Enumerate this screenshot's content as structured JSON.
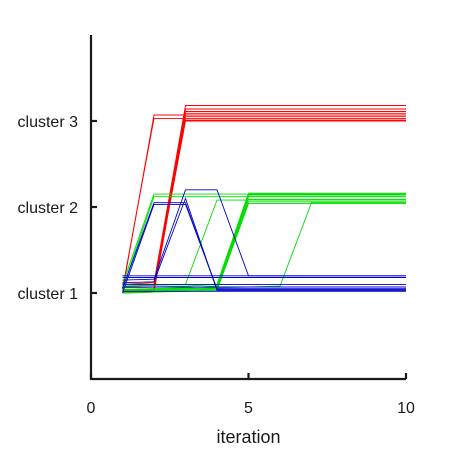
{
  "chart_data": {
    "type": "line",
    "title": "",
    "xlabel": "iteration",
    "ylabel": "",
    "xlim": [
      0,
      10
    ],
    "ylim": [
      0,
      4
    ],
    "x": [
      1,
      2,
      3,
      4,
      5,
      6,
      7,
      8,
      9,
      10
    ],
    "x_ticks": [
      0,
      5,
      10
    ],
    "x_tick_labels": [
      "0",
      "5",
      "10"
    ],
    "y_ticks": [
      1,
      2,
      3
    ],
    "y_tick_labels": [
      "cluster 1",
      "cluster 2",
      "cluster 3"
    ],
    "grid": false,
    "legend": "none",
    "colors": {
      "red": "#ff0000",
      "green": "#00dd00",
      "blue": "#0000cc"
    },
    "series": [
      {
        "color": "red",
        "values": [
          1.02,
          3.07,
          3.07,
          3.07,
          3.07,
          3.07,
          3.07,
          3.07,
          3.07,
          3.07
        ]
      },
      {
        "color": "red",
        "values": [
          1.05,
          3.03,
          3.03,
          3.03,
          3.03,
          3.03,
          3.03,
          3.03,
          3.03,
          3.03
        ]
      },
      {
        "color": "red",
        "values": [
          1.1,
          1.12,
          3.18,
          3.18,
          3.18,
          3.18,
          3.18,
          3.18,
          3.18,
          3.18
        ]
      },
      {
        "color": "red",
        "values": [
          1.04,
          1.05,
          3.14,
          3.14,
          3.14,
          3.14,
          3.14,
          3.14,
          3.14,
          3.14
        ]
      },
      {
        "color": "red",
        "values": [
          1.08,
          1.09,
          3.11,
          3.11,
          3.11,
          3.11,
          3.11,
          3.11,
          3.11,
          3.11
        ]
      },
      {
        "color": "red",
        "values": [
          1.02,
          1.03,
          3.09,
          3.09,
          3.09,
          3.09,
          3.09,
          3.09,
          3.09,
          3.09
        ]
      },
      {
        "color": "red",
        "values": [
          1.0,
          1.01,
          3.05,
          3.05,
          3.05,
          3.05,
          3.05,
          3.05,
          3.05,
          3.05
        ]
      },
      {
        "color": "red",
        "values": [
          1.03,
          1.04,
          3.01,
          3.01,
          3.01,
          3.01,
          3.01,
          3.01,
          3.01,
          3.01
        ]
      },
      {
        "color": "red",
        "values": [
          1.06,
          1.07,
          3.0,
          3.0,
          3.0,
          3.0,
          3.0,
          3.0,
          3.0,
          3.0
        ]
      },
      {
        "color": "green",
        "values": [
          1.1,
          2.15,
          2.15,
          2.15,
          2.15,
          2.15,
          2.15,
          2.15,
          2.15,
          2.15
        ]
      },
      {
        "color": "green",
        "values": [
          1.05,
          2.12,
          2.12,
          2.12,
          2.12,
          2.12,
          2.12,
          2.12,
          2.12,
          2.12
        ]
      },
      {
        "color": "green",
        "values": [
          1.08,
          1.09,
          1.1,
          2.08,
          2.08,
          2.08,
          2.08,
          2.08,
          2.08,
          2.08
        ]
      },
      {
        "color": "green",
        "values": [
          1.06,
          1.07,
          1.08,
          1.1,
          2.16,
          2.16,
          2.16,
          2.16,
          2.16,
          2.16
        ]
      },
      {
        "color": "green",
        "values": [
          1.04,
          1.05,
          1.06,
          1.08,
          2.14,
          2.14,
          2.14,
          2.14,
          2.14,
          2.14
        ]
      },
      {
        "color": "green",
        "values": [
          1.03,
          1.04,
          1.05,
          1.06,
          2.12,
          2.12,
          2.12,
          2.12,
          2.12,
          2.12
        ]
      },
      {
        "color": "green",
        "values": [
          1.02,
          1.03,
          1.04,
          1.05,
          2.09,
          2.09,
          2.09,
          2.09,
          2.09,
          2.09
        ]
      },
      {
        "color": "green",
        "values": [
          1.01,
          1.02,
          1.03,
          1.04,
          2.06,
          2.06,
          2.06,
          2.06,
          2.06,
          2.06
        ]
      },
      {
        "color": "green",
        "values": [
          1.0,
          1.01,
          1.02,
          1.03,
          2.04,
          2.04,
          2.04,
          2.04,
          2.04,
          2.04
        ]
      },
      {
        "color": "green",
        "values": [
          1.03,
          1.04,
          1.05,
          1.06,
          1.07,
          1.08,
          2.05,
          2.05,
          2.05,
          2.05
        ]
      },
      {
        "color": "blue",
        "values": [
          1.2,
          1.2,
          1.2,
          1.2,
          1.2,
          1.2,
          1.2,
          1.2,
          1.2,
          1.2
        ]
      },
      {
        "color": "blue",
        "values": [
          1.18,
          1.18,
          1.18,
          1.18,
          1.18,
          1.18,
          1.18,
          1.18,
          1.18,
          1.18
        ]
      },
      {
        "color": "blue",
        "values": [
          1.15,
          1.16,
          2.2,
          2.2,
          1.2,
          1.2,
          1.2,
          1.2,
          1.2,
          1.2
        ]
      },
      {
        "color": "blue",
        "values": [
          1.12,
          1.13,
          2.1,
          1.03,
          1.03,
          1.03,
          1.03,
          1.03,
          1.03,
          1.03
        ]
      },
      {
        "color": "blue",
        "values": [
          1.0,
          2.03,
          2.03,
          1.05,
          1.05,
          1.05,
          1.05,
          1.05,
          1.05,
          1.05
        ]
      },
      {
        "color": "blue",
        "values": [
          1.05,
          2.05,
          2.05,
          1.04,
          1.04,
          1.04,
          1.04,
          1.04,
          1.04,
          1.04
        ]
      },
      {
        "color": "blue",
        "values": [
          1.1,
          1.1,
          1.1,
          1.1,
          1.1,
          1.1,
          1.1,
          1.1,
          1.1,
          1.1
        ]
      },
      {
        "color": "blue",
        "values": [
          1.07,
          1.07,
          1.07,
          1.07,
          1.07,
          1.07,
          1.07,
          1.07,
          1.07,
          1.07
        ]
      },
      {
        "color": "blue",
        "values": [
          1.02,
          1.02,
          1.02,
          1.02,
          1.02,
          1.02,
          1.02,
          1.02,
          1.02,
          1.02
        ]
      }
    ]
  }
}
